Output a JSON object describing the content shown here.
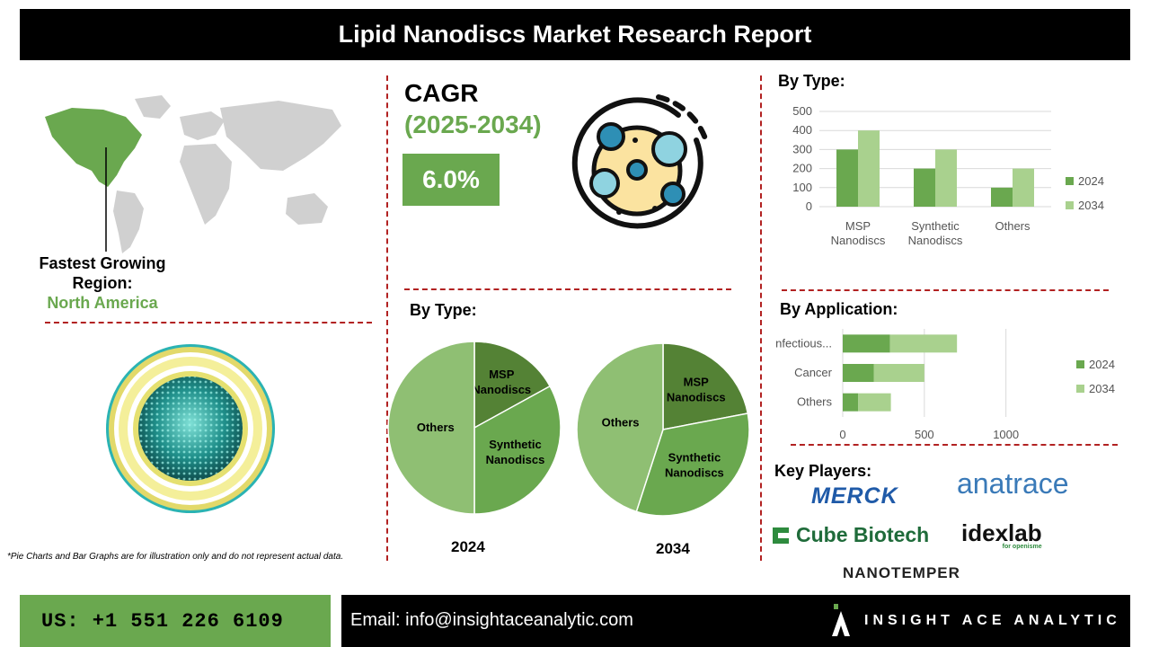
{
  "header": {
    "title": "Lipid Nanodiscs Market Research Report"
  },
  "region": {
    "label": "Fastest Growing Region:",
    "value": "North America"
  },
  "cagr": {
    "title": "CAGR",
    "years": "(2025-2034)",
    "value": "6.0%"
  },
  "sections": {
    "bar_type": "By Type:",
    "pie_type": "By Type:",
    "application": "By Application:",
    "players": "Key Players:"
  },
  "chart_data": [
    {
      "type": "bar",
      "title": "By Type:",
      "categories": [
        "MSP Nanodiscs",
        "Synthetic Nanodiscs",
        "Others"
      ],
      "series": [
        {
          "name": "2024",
          "values": [
            300,
            200,
            100
          ],
          "color": "#6aa84f"
        },
        {
          "name": "2034",
          "values": [
            400,
            300,
            200
          ],
          "color": "#a9d18e"
        }
      ],
      "ylim": [
        0,
        500
      ],
      "yticks": [
        "0",
        "100",
        "200",
        "300",
        "400",
        "500"
      ],
      "grid": true,
      "legend": "right"
    },
    {
      "type": "bar",
      "orientation": "horizontal",
      "stacked": true,
      "title": "By Application:",
      "categories": [
        "Infectious...",
        "Cancer",
        "Others"
      ],
      "series": [
        {
          "name": "2024",
          "values": [
            290,
            190,
            95
          ],
          "color": "#6aa84f"
        },
        {
          "name": "2034",
          "values": [
            410,
            310,
            200
          ],
          "color": "#a9d18e"
        }
      ],
      "xlim": [
        0,
        1200
      ],
      "xticks": [
        "0",
        "500",
        "1000"
      ],
      "grid": true,
      "legend": "right"
    },
    {
      "type": "pie",
      "year": "2024",
      "slices": [
        {
          "label": "MSP Nanodiscs",
          "value": 17,
          "color": "#548235"
        },
        {
          "label": "Synthetic Nanodiscs",
          "value": 33,
          "color": "#6aa84f"
        },
        {
          "label": "Others",
          "value": 50,
          "color": "#8fbf73"
        }
      ]
    },
    {
      "type": "pie",
      "year": "2034",
      "slices": [
        {
          "label": "MSP Nanodiscs",
          "value": 22,
          "color": "#548235"
        },
        {
          "label": "Synthetic Nanodiscs",
          "value": 33,
          "color": "#6aa84f"
        },
        {
          "label": "Others",
          "value": 45,
          "color": "#8fbf73"
        }
      ]
    }
  ],
  "note": "*Pie Charts and Bar Graphs are for illustration only and do not represent actual data.",
  "players": [
    "MERCK",
    "anatrace",
    "Cube Biotech",
    "idexlab",
    "NANOTEMPER"
  ],
  "players_extra": {
    "idexlab_tagline": "for openisme"
  },
  "footer": {
    "phone": "US: +1 551 226 6109",
    "email": "Email: info@insightaceanalytic.com",
    "brand": "INSIGHT ACE ANALYTIC"
  },
  "colors": {
    "accent": "#6aa84f",
    "divider": "#b22222",
    "dark": "#000000"
  }
}
